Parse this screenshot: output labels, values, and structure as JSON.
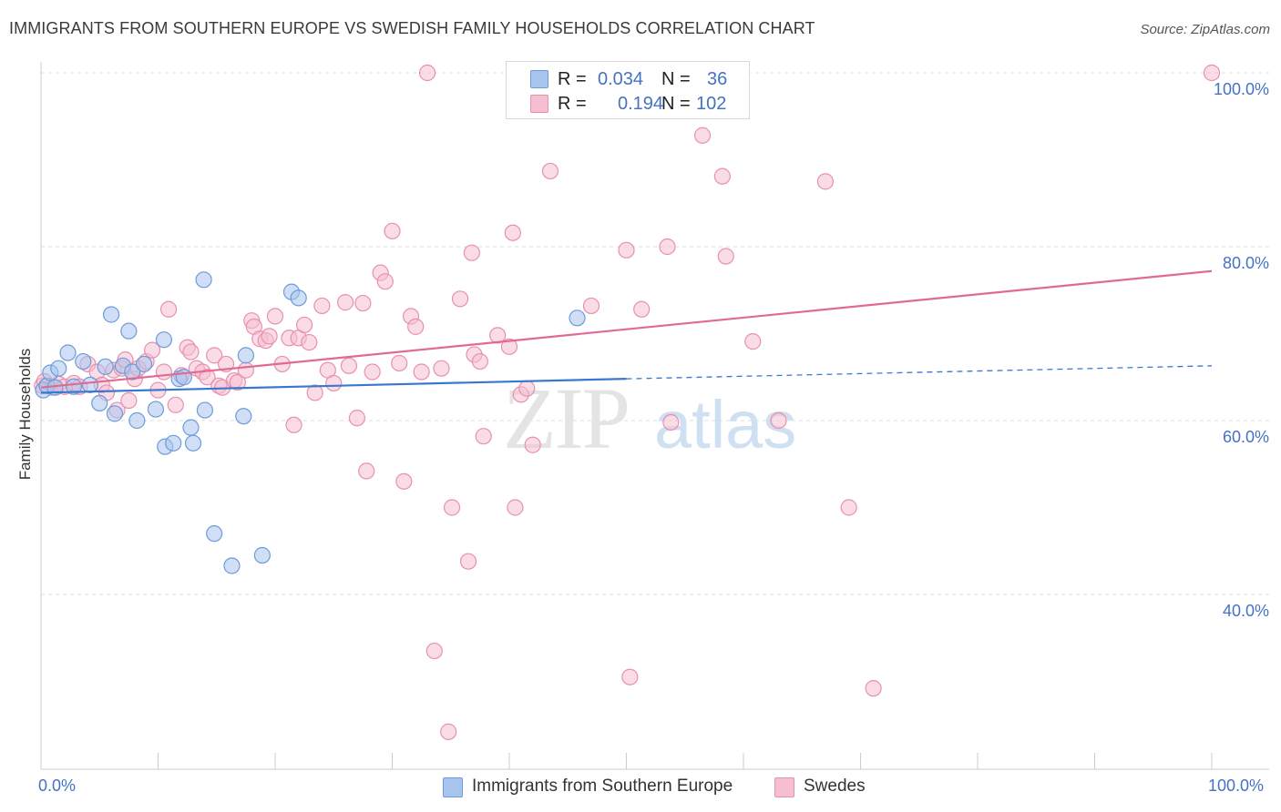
{
  "title": "IMMIGRANTS FROM SOUTHERN EUROPE VS SWEDISH FAMILY HOUSEHOLDS CORRELATION CHART",
  "source": "Source: ZipAtlas.com",
  "watermark": {
    "zip": "ZIP",
    "atlas": "atlas"
  },
  "legend_top": {
    "r_label": "R =",
    "n_label": "N =",
    "rows": [
      {
        "r": "0.034",
        "n": "36"
      },
      {
        "r": "0.194",
        "n": "102"
      }
    ]
  },
  "legend_bottom": [
    {
      "label": "Immigrants from Southern Europe"
    },
    {
      "label": "Swedes"
    }
  ],
  "colors": {
    "blue_fill": "#a9c4ec",
    "blue_stroke": "#6e9bd9",
    "blue_line": "#3a78d0",
    "pink_fill": "#f6bfd1",
    "pink_stroke": "#e890ae",
    "pink_line": "#e06a93",
    "axis_label": "#4472c4",
    "grid": "#dddddd"
  },
  "chart_data": {
    "type": "scatter",
    "title": "IMMIGRANTS FROM SOUTHERN EUROPE VS SWEDISH FAMILY HOUSEHOLDS CORRELATION CHART",
    "xlabel": "",
    "ylabel": "Family Households",
    "xlim": [
      0,
      100
    ],
    "ylim": [
      18,
      102
    ],
    "x_tick_labels": [
      "0.0%",
      "100.0%"
    ],
    "y_ticks": [
      40,
      60,
      80,
      100
    ],
    "y_tick_labels": [
      "40.0%",
      "60.0%",
      "80.0%",
      "100.0%"
    ],
    "grid": true,
    "legend_position": "top-center",
    "series": [
      {
        "name": "Immigrants from Southern Europe",
        "r": 0.034,
        "n": 36,
        "trend": {
          "x0": 0,
          "y0": 63.2,
          "x1": 50,
          "y1": 64.8,
          "dashed_to_x": 100,
          "dashed_to_y": 66.3
        },
        "points": [
          [
            0.2,
            63.5
          ],
          [
            0.5,
            64.0
          ],
          [
            0.8,
            65.5
          ],
          [
            1.2,
            63.8
          ],
          [
            1.5,
            66.0
          ],
          [
            2.3,
            67.8
          ],
          [
            2.8,
            63.9
          ],
          [
            3.6,
            66.8
          ],
          [
            4.2,
            64.1
          ],
          [
            5.0,
            62.0
          ],
          [
            5.5,
            66.2
          ],
          [
            6.0,
            72.2
          ],
          [
            6.3,
            60.8
          ],
          [
            7.0,
            66.3
          ],
          [
            7.5,
            70.3
          ],
          [
            7.8,
            65.6
          ],
          [
            8.2,
            60.0
          ],
          [
            8.8,
            66.5
          ],
          [
            9.8,
            61.3
          ],
          [
            10.5,
            69.3
          ],
          [
            10.6,
            57.0
          ],
          [
            11.3,
            57.4
          ],
          [
            11.8,
            64.8
          ],
          [
            12.2,
            65.0
          ],
          [
            12.8,
            59.2
          ],
          [
            13.0,
            57.4
          ],
          [
            14.0,
            61.2
          ],
          [
            13.9,
            76.2
          ],
          [
            14.8,
            47.0
          ],
          [
            16.3,
            43.3
          ],
          [
            17.3,
            60.5
          ],
          [
            17.5,
            67.5
          ],
          [
            18.9,
            44.5
          ],
          [
            21.4,
            74.8
          ],
          [
            22.0,
            74.1
          ],
          [
            45.8,
            71.8
          ]
        ]
      },
      {
        "name": "Swedes",
        "r": 0.194,
        "n": 102,
        "trend": {
          "x0": 0,
          "y0": 63.8,
          "x1": 100,
          "y1": 77.2
        },
        "points": [
          [
            0.1,
            64.0
          ],
          [
            0.3,
            64.5
          ],
          [
            0.6,
            64.0
          ],
          [
            1.0,
            63.8
          ],
          [
            1.5,
            64.2
          ],
          [
            2.0,
            63.9
          ],
          [
            2.8,
            64.3
          ],
          [
            3.3,
            63.9
          ],
          [
            4.0,
            66.5
          ],
          [
            4.8,
            65.6
          ],
          [
            5.2,
            64.1
          ],
          [
            5.6,
            63.2
          ],
          [
            6.2,
            65.8
          ],
          [
            6.5,
            61.2
          ],
          [
            6.9,
            66.0
          ],
          [
            7.2,
            67.0
          ],
          [
            7.5,
            62.3
          ],
          [
            8.0,
            64.8
          ],
          [
            8.3,
            66.0
          ],
          [
            9.0,
            66.8
          ],
          [
            9.5,
            68.1
          ],
          [
            10.0,
            63.5
          ],
          [
            10.5,
            65.6
          ],
          [
            10.9,
            72.8
          ],
          [
            11.5,
            61.8
          ],
          [
            12.0,
            65.2
          ],
          [
            12.5,
            68.4
          ],
          [
            12.8,
            67.9
          ],
          [
            13.3,
            66.0
          ],
          [
            13.8,
            65.6
          ],
          [
            14.2,
            65.0
          ],
          [
            14.8,
            67.5
          ],
          [
            15.2,
            64.0
          ],
          [
            15.5,
            63.8
          ],
          [
            15.8,
            66.5
          ],
          [
            16.5,
            64.6
          ],
          [
            16.8,
            64.4
          ],
          [
            17.5,
            65.8
          ],
          [
            18.0,
            71.5
          ],
          [
            18.2,
            70.8
          ],
          [
            18.7,
            69.4
          ],
          [
            19.2,
            69.2
          ],
          [
            19.5,
            69.7
          ],
          [
            20.0,
            72.0
          ],
          [
            20.6,
            66.5
          ],
          [
            21.2,
            69.5
          ],
          [
            21.6,
            59.5
          ],
          [
            22.0,
            69.5
          ],
          [
            22.5,
            71.0
          ],
          [
            22.9,
            69.0
          ],
          [
            23.4,
            63.2
          ],
          [
            24.0,
            73.2
          ],
          [
            24.5,
            65.8
          ],
          [
            25.0,
            64.3
          ],
          [
            26.0,
            73.6
          ],
          [
            26.3,
            66.3
          ],
          [
            27.0,
            60.3
          ],
          [
            27.5,
            73.5
          ],
          [
            27.8,
            54.2
          ],
          [
            28.3,
            65.6
          ],
          [
            29.0,
            77.0
          ],
          [
            29.4,
            76.0
          ],
          [
            30.0,
            81.8
          ],
          [
            30.6,
            66.6
          ],
          [
            31.0,
            53.0
          ],
          [
            31.6,
            72.0
          ],
          [
            32.0,
            70.8
          ],
          [
            32.5,
            65.6
          ],
          [
            33.0,
            100.0
          ],
          [
            33.6,
            33.5
          ],
          [
            34.2,
            66.0
          ],
          [
            34.8,
            24.2
          ],
          [
            35.1,
            50.0
          ],
          [
            35.8,
            74.0
          ],
          [
            36.5,
            43.8
          ],
          [
            36.8,
            79.3
          ],
          [
            37.0,
            67.6
          ],
          [
            37.5,
            66.8
          ],
          [
            37.8,
            58.2
          ],
          [
            39.0,
            69.8
          ],
          [
            40.0,
            68.5
          ],
          [
            40.3,
            81.6
          ],
          [
            40.5,
            50.0
          ],
          [
            41.0,
            63.0
          ],
          [
            41.5,
            63.7
          ],
          [
            42.0,
            57.2
          ],
          [
            43.5,
            88.7
          ],
          [
            47.0,
            73.2
          ],
          [
            50.0,
            79.6
          ],
          [
            50.3,
            30.5
          ],
          [
            51.3,
            72.8
          ],
          [
            53.5,
            80.0
          ],
          [
            53.8,
            59.8
          ],
          [
            56.5,
            92.8
          ],
          [
            58.2,
            88.1
          ],
          [
            58.5,
            78.9
          ],
          [
            60.8,
            69.1
          ],
          [
            63.0,
            60.0
          ],
          [
            67.0,
            87.5
          ],
          [
            69.0,
            50.0
          ],
          [
            71.1,
            29.2
          ],
          [
            100.0,
            100.0
          ]
        ]
      }
    ]
  }
}
